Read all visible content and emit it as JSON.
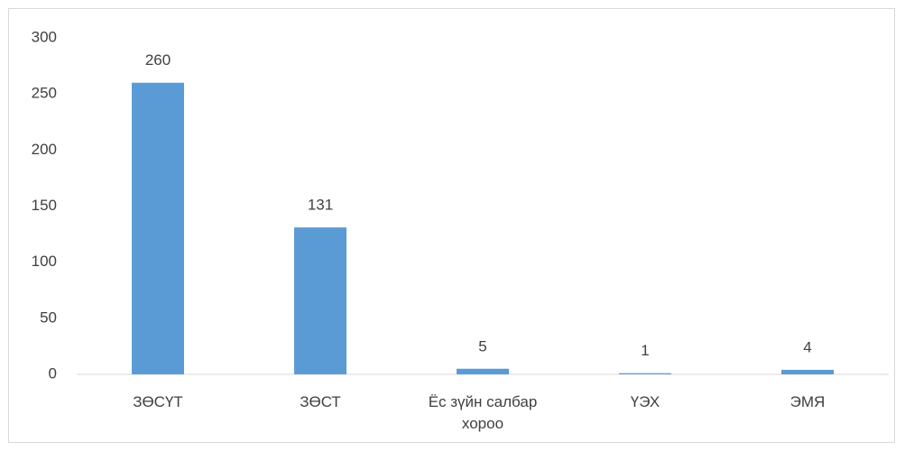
{
  "chart_data": {
    "type": "bar",
    "categories": [
      "ЗӨСҮТ",
      "ЗӨСТ",
      "Ёс зүйн салбар хороо",
      "ҮЭХ",
      "ЭМЯ"
    ],
    "values": [
      260,
      131,
      5,
      1,
      4
    ],
    "color": "#5b9bd5",
    "ylim": [
      0,
      300
    ],
    "yticks": [
      0,
      50,
      100,
      150,
      200,
      250,
      300
    ],
    "grid": false
  }
}
